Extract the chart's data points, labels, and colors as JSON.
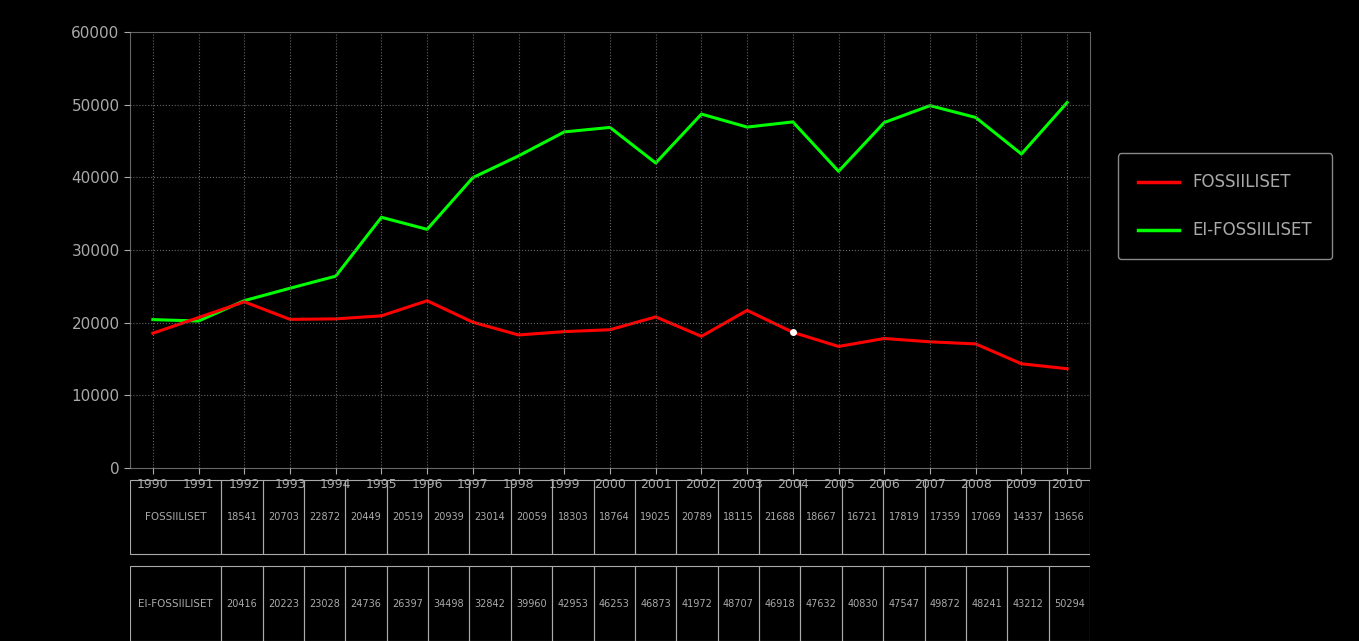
{
  "years": [
    1990,
    1991,
    1992,
    1993,
    1994,
    1995,
    1996,
    1997,
    1998,
    1999,
    2000,
    2001,
    2002,
    2003,
    2004,
    2005,
    2006,
    2007,
    2008,
    2009,
    2010
  ],
  "fossiiliset": [
    18541,
    20703,
    22872,
    20449,
    20519,
    20939,
    23014,
    20059,
    18303,
    18764,
    19025,
    20789,
    18115,
    21688,
    18667,
    16721,
    17819,
    17359,
    17069,
    14337,
    13656
  ],
  "ei_fossiiliset": [
    20416,
    20223,
    23028,
    24736,
    26397,
    34498,
    32842,
    39960,
    42953,
    46253,
    46873,
    41972,
    48707,
    46918,
    47632,
    40830,
    47547,
    49872,
    48241,
    43212,
    50294
  ],
  "fossil_color": "#ff0000",
  "ei_fossil_color": "#00ff00",
  "bg_color": "#000000",
  "plot_bg_color": "#000000",
  "grid_color": "#666666",
  "text_color": "#aaaaaa",
  "ylim": [
    0,
    60000
  ],
  "yticks": [
    0,
    10000,
    20000,
    30000,
    40000,
    50000,
    60000
  ],
  "legend_fossil": "FOSSIILISET",
  "legend_ei_fossil": "EI-FOSSIILISET",
  "table_row1_label": "FOSSIILISET",
  "table_row2_label": "EI-FOSSIILISET",
  "line_width": 2.2,
  "dot_year_index": 14,
  "dot_color": "#ffffff"
}
